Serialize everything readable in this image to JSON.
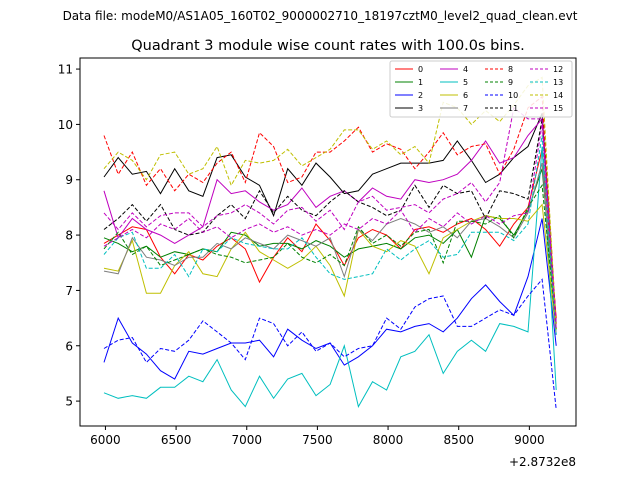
{
  "chart_data": {
    "type": "line",
    "suptitle": "Data file: modeM0/AS1A05_160T02_9000002710_18197cztM0_level2_quad_clean.evt",
    "title": "Quadrant 3 module wise count rates with 100.0s bins.",
    "xlabel": "",
    "ylabel": "",
    "x_offset_label": "+2.8732e8",
    "xlim": [
      5820,
      9330
    ],
    "ylim": [
      4.55,
      11.2
    ],
    "xticks": [
      6000,
      6500,
      7000,
      7500,
      8000,
      8500,
      9000
    ],
    "yticks": [
      5,
      6,
      7,
      8,
      9,
      10,
      11
    ],
    "legend": "top-right",
    "x": [
      5990,
      6090,
      6190,
      6290,
      6390,
      6490,
      6590,
      6690,
      6790,
      6890,
      6990,
      7090,
      7190,
      7290,
      7390,
      7490,
      7590,
      7690,
      7790,
      7890,
      7990,
      8090,
      8190,
      8290,
      8390,
      8490,
      8590,
      8690,
      8790,
      8890,
      8990,
      9090,
      9190
    ],
    "series": [
      {
        "name": "0",
        "color": "#ff0000",
        "dash": false,
        "values": [
          7.85,
          8.0,
          8.15,
          8.1,
          7.6,
          7.3,
          7.65,
          7.55,
          7.8,
          7.95,
          7.75,
          7.15,
          7.6,
          7.95,
          7.7,
          8.2,
          7.9,
          7.45,
          7.95,
          8.1,
          8.0,
          7.75,
          8.1,
          8.15,
          8.05,
          8.2,
          8.3,
          8.1,
          7.8,
          8.2,
          8.5,
          9.55,
          6.5
        ]
      },
      {
        "name": "1",
        "color": "#008000",
        "dash": false,
        "values": [
          7.95,
          7.85,
          7.7,
          7.8,
          7.6,
          7.7,
          7.65,
          7.75,
          7.7,
          8.05,
          8.0,
          7.8,
          7.85,
          7.85,
          7.75,
          7.9,
          7.8,
          7.6,
          7.75,
          7.8,
          7.85,
          7.75,
          7.95,
          8.0,
          7.85,
          8.1,
          7.6,
          8.35,
          8.3,
          8.0,
          8.45,
          9.2,
          6.4
        ]
      },
      {
        "name": "2",
        "color": "#0000ff",
        "dash": false,
        "values": [
          5.7,
          6.5,
          6.05,
          5.85,
          5.55,
          5.4,
          5.9,
          5.85,
          5.95,
          6.05,
          6.05,
          6.1,
          5.8,
          6.3,
          6.1,
          5.95,
          6.05,
          5.65,
          5.8,
          6.0,
          6.3,
          6.25,
          6.35,
          6.4,
          6.25,
          6.5,
          6.85,
          7.1,
          6.8,
          6.55,
          7.25,
          8.3,
          6.0
        ]
      },
      {
        "name": "3",
        "color": "#000000",
        "dash": false,
        "values": [
          9.05,
          9.4,
          9.1,
          9.15,
          8.75,
          9.2,
          8.8,
          8.7,
          9.4,
          9.45,
          9.05,
          8.9,
          8.35,
          9.2,
          8.9,
          9.3,
          9.05,
          8.75,
          8.8,
          9.1,
          9.2,
          9.3,
          9.3,
          9.3,
          9.35,
          9.7,
          9.35,
          8.95,
          9.1,
          9.4,
          9.6,
          10.2,
          6.3
        ]
      },
      {
        "name": "4",
        "color": "#bf00bf",
        "dash": false,
        "values": [
          8.8,
          7.95,
          8.3,
          8.1,
          8.0,
          7.85,
          8.0,
          8.15,
          9.0,
          8.75,
          8.8,
          8.6,
          8.45,
          8.55,
          8.85,
          8.5,
          8.7,
          8.8,
          8.6,
          8.85,
          8.7,
          8.65,
          9.0,
          8.95,
          9.0,
          9.1,
          9.35,
          9.7,
          9.3,
          9.4,
          9.8,
          10.1,
          6.3
        ]
      },
      {
        "name": "5",
        "color": "#00bfbf",
        "dash": false,
        "values": [
          5.15,
          5.05,
          5.1,
          5.05,
          5.25,
          5.25,
          5.45,
          5.35,
          5.75,
          5.2,
          4.9,
          5.45,
          5.05,
          5.4,
          5.5,
          5.1,
          5.3,
          6.0,
          4.9,
          5.35,
          5.2,
          5.8,
          5.9,
          6.2,
          5.5,
          5.9,
          6.1,
          5.9,
          6.4,
          6.35,
          6.25,
          9.6,
          5.2
        ]
      },
      {
        "name": "6",
        "color": "#bfbf00",
        "dash": false,
        "values": [
          7.4,
          7.35,
          7.9,
          6.95,
          6.95,
          7.45,
          7.7,
          7.3,
          7.25,
          7.75,
          8.05,
          7.7,
          7.55,
          7.4,
          7.55,
          7.8,
          7.45,
          6.9,
          8.1,
          7.8,
          7.7,
          7.9,
          7.8,
          7.3,
          7.95,
          8.1,
          8.25,
          8.35,
          8.3,
          8.3,
          8.25,
          8.55,
          6.2
        ]
      },
      {
        "name": "7",
        "color": "#7f7f7f",
        "dash": false,
        "values": [
          7.35,
          7.3,
          7.95,
          7.6,
          7.55,
          7.45,
          7.6,
          7.6,
          7.85,
          7.75,
          7.95,
          7.85,
          7.75,
          8.0,
          7.9,
          7.8,
          7.95,
          7.25,
          8.1,
          7.9,
          8.2,
          8.3,
          8.2,
          8.05,
          8.15,
          7.95,
          8.25,
          8.3,
          8.15,
          7.95,
          8.4,
          9.3,
          6.2
        ]
      },
      {
        "name": "8",
        "color": "#ff0000",
        "dash": true,
        "values": [
          9.8,
          9.1,
          9.5,
          8.9,
          9.2,
          8.8,
          9.1,
          8.95,
          9.3,
          9.5,
          8.95,
          9.85,
          9.6,
          8.95,
          9.05,
          9.5,
          9.5,
          9.7,
          9.95,
          9.5,
          9.65,
          9.55,
          9.2,
          9.5,
          9.85,
          9.45,
          9.6,
          9.65,
          9.1,
          9.55,
          10.3,
          10.5,
          6.4
        ]
      },
      {
        "name": "9",
        "color": "#008000",
        "dash": true,
        "values": [
          7.75,
          8.05,
          7.65,
          7.8,
          7.45,
          7.55,
          7.65,
          7.75,
          7.65,
          7.6,
          7.5,
          7.55,
          7.6,
          7.85,
          7.6,
          7.5,
          7.65,
          7.45,
          8.15,
          7.85,
          8.0,
          7.8,
          8.05,
          8.1,
          7.5,
          8.25,
          8.25,
          8.2,
          8.35,
          7.95,
          8.5,
          8.9,
          6.3
        ]
      },
      {
        "name": "10",
        "color": "#0000ff",
        "dash": true,
        "values": [
          5.95,
          6.1,
          6.15,
          5.7,
          5.95,
          5.9,
          6.1,
          6.45,
          6.25,
          6.05,
          5.75,
          6.5,
          6.4,
          6.0,
          6.25,
          5.9,
          6.05,
          5.8,
          5.95,
          6.0,
          6.5,
          6.3,
          6.7,
          6.85,
          6.9,
          6.35,
          6.35,
          6.5,
          6.65,
          6.55,
          6.9,
          7.2,
          4.85
        ]
      },
      {
        "name": "11",
        "color": "#000000",
        "dash": true,
        "values": [
          8.1,
          8.3,
          8.55,
          8.25,
          8.55,
          8.1,
          8.0,
          8.05,
          8.35,
          8.55,
          8.3,
          8.8,
          8.4,
          8.7,
          8.45,
          8.35,
          8.6,
          8.8,
          8.6,
          8.5,
          8.35,
          8.45,
          8.9,
          8.5,
          8.9,
          8.75,
          8.8,
          8.3,
          8.8,
          8.75,
          8.65,
          10.1,
          6.4
        ]
      },
      {
        "name": "12",
        "color": "#bf00bf",
        "dash": true,
        "values": [
          8.4,
          8.1,
          8.4,
          8.15,
          8.35,
          8.4,
          8.4,
          8.15,
          8.35,
          8.4,
          8.55,
          8.4,
          8.2,
          8.45,
          8.5,
          8.25,
          8.45,
          8.1,
          8.6,
          8.7,
          8.45,
          8.5,
          8.55,
          8.4,
          8.65,
          8.75,
          8.95,
          8.6,
          8.95,
          10.3,
          10.1,
          10.1,
          6.4
        ]
      },
      {
        "name": "13",
        "color": "#00bfbf",
        "dash": true,
        "values": [
          7.65,
          7.95,
          8.05,
          7.4,
          7.4,
          7.65,
          7.25,
          7.75,
          7.7,
          7.95,
          7.85,
          7.8,
          7.75,
          7.75,
          7.95,
          7.6,
          7.3,
          7.2,
          7.25,
          7.3,
          7.75,
          7.55,
          7.75,
          7.9,
          7.6,
          7.65,
          8.05,
          8.05,
          8.05,
          7.9,
          8.2,
          9.8,
          6.2
        ]
      },
      {
        "name": "14",
        "color": "#bfbf00",
        "dash": true,
        "values": [
          9.2,
          9.5,
          9.35,
          9.0,
          9.45,
          9.5,
          9.1,
          9.2,
          9.6,
          8.9,
          9.35,
          9.3,
          9.35,
          9.55,
          9.25,
          9.4,
          9.55,
          9.9,
          9.9,
          9.55,
          9.7,
          9.45,
          9.6,
          9.3,
          10.4,
          10.3,
          10.0,
          10.25,
          10.05,
          10.35,
          10.7,
          10.85,
          6.3
        ]
      },
      {
        "name": "15",
        "color": "#bf00bf",
        "dash": true,
        "values": [
          7.8,
          7.95,
          8.1,
          7.95,
          8.2,
          8.1,
          8.3,
          8.05,
          8.15,
          7.95,
          8.1,
          8.2,
          8.05,
          8.15,
          8.0,
          8.1,
          8.0,
          8.2,
          8.1,
          8.3,
          8.2,
          8.45,
          8.05,
          8.3,
          8.15,
          8.4,
          8.2,
          8.35,
          8.2,
          8.35,
          8.4,
          10.0,
          6.3
        ]
      }
    ]
  }
}
